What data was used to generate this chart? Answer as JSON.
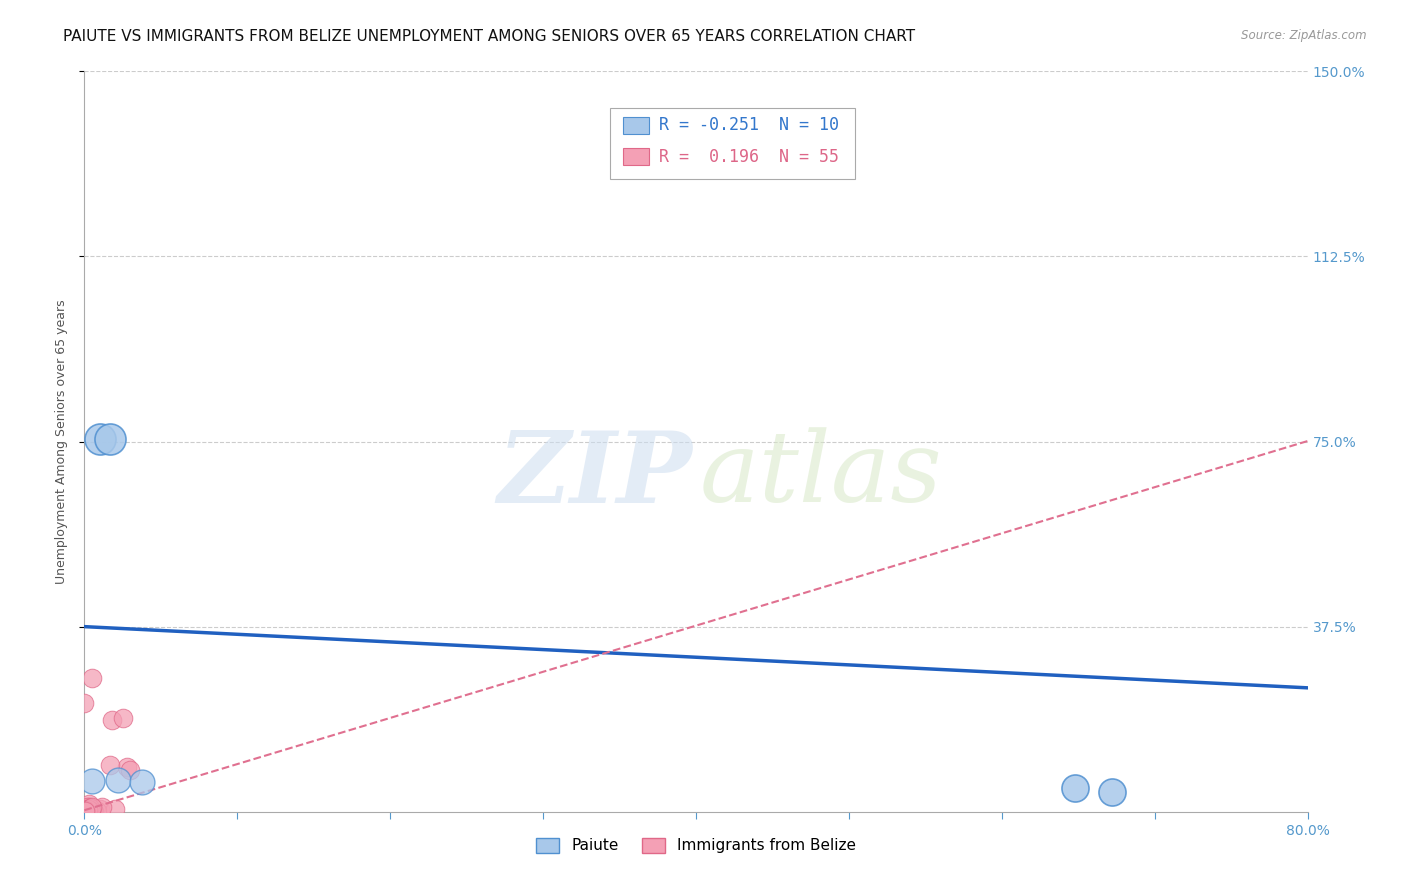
{
  "title": "PAIUTE VS IMMIGRANTS FROM BELIZE UNEMPLOYMENT AMONG SENIORS OVER 65 YEARS CORRELATION CHART",
  "source": "Source: ZipAtlas.com",
  "ylabel": "Unemployment Among Seniors over 65 years",
  "xlim": [
    0.0,
    0.8
  ],
  "ylim": [
    0.0,
    1.5
  ],
  "yticks": [
    0.375,
    0.75,
    1.125,
    1.5
  ],
  "ytick_labels_right": [
    "37.5%",
    "75.0%",
    "112.5%",
    "150.0%"
  ],
  "paiute_color": "#a8c8ea",
  "belize_color": "#f4a0b5",
  "paiute_edge_color": "#5090d0",
  "belize_edge_color": "#e06888",
  "paiute_line_color": "#2060c0",
  "belize_line_color": "#e07090",
  "paiute_R": -0.251,
  "paiute_N": 10,
  "belize_R": 0.196,
  "belize_N": 55,
  "paiute_line_intercept": 0.375,
  "paiute_line_slope": -0.155,
  "belize_line_intercept": 0.003,
  "belize_line_slope": 0.935,
  "background_color": "#ffffff",
  "grid_color": "#cccccc",
  "title_fontsize": 11,
  "axis_label_fontsize": 9,
  "tick_fontsize": 10,
  "legend_fontsize": 12
}
